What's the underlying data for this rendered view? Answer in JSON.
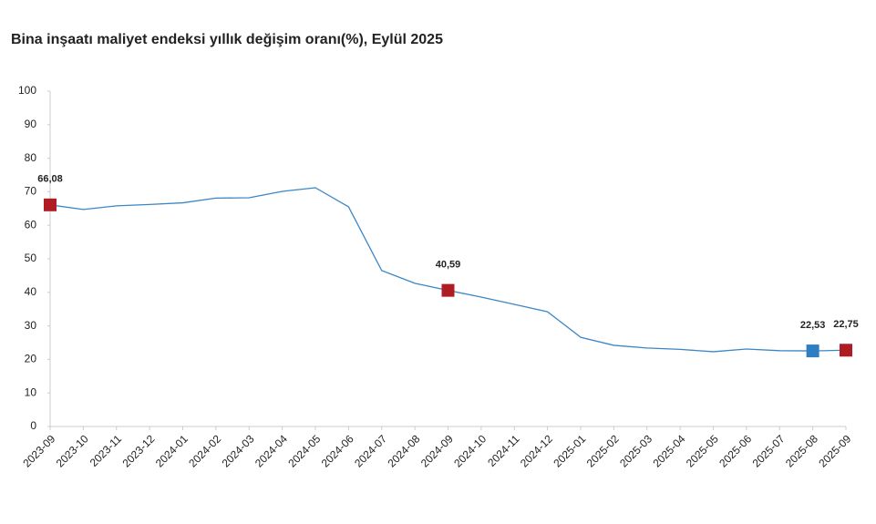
{
  "chart_data": {
    "type": "line",
    "title": "Bina inşaatı maliyet endeksi yıllık değişim oranı(%), Eylül 2025",
    "categories": [
      "2023-09",
      "2023-10",
      "2023-11",
      "2023-12",
      "2024-01",
      "2024-02",
      "2024-03",
      "2024-04",
      "2024-05",
      "2024-06",
      "2024-07",
      "2024-08",
      "2024-09",
      "2024-10",
      "2024-11",
      "2024-12",
      "2025-01",
      "2025-02",
      "2025-03",
      "2025-04",
      "2025-05",
      "2025-06",
      "2025-07",
      "2025-08",
      "2025-09"
    ],
    "series": [
      {
        "color": "#3b86c6",
        "values": [
          66.08,
          64.7,
          65.8,
          66.2,
          66.7,
          68.1,
          68.2,
          70.1,
          71.2,
          65.5,
          46.5,
          42.7,
          40.59,
          38.6,
          36.4,
          34.2,
          26.6,
          24.2,
          23.4,
          23.0,
          22.3,
          23.1,
          22.6,
          22.53,
          22.75
        ],
        "value_labels": [
          "66,08",
          null,
          null,
          null,
          null,
          null,
          null,
          null,
          null,
          null,
          null,
          null,
          "40,59",
          null,
          null,
          null,
          null,
          null,
          null,
          null,
          null,
          null,
          null,
          "22,53",
          "22,75"
        ],
        "marker_colors": [
          "#b01c24",
          null,
          null,
          null,
          null,
          null,
          null,
          null,
          null,
          null,
          null,
          null,
          "#b01c24",
          null,
          null,
          null,
          null,
          null,
          null,
          null,
          null,
          null,
          null,
          "#2f7ec1",
          "#b01c24"
        ]
      }
    ],
    "ylim": [
      0,
      100
    ],
    "yticks": [
      0,
      10,
      20,
      30,
      40,
      50,
      60,
      70,
      80,
      90,
      100
    ],
    "grid": false
  }
}
